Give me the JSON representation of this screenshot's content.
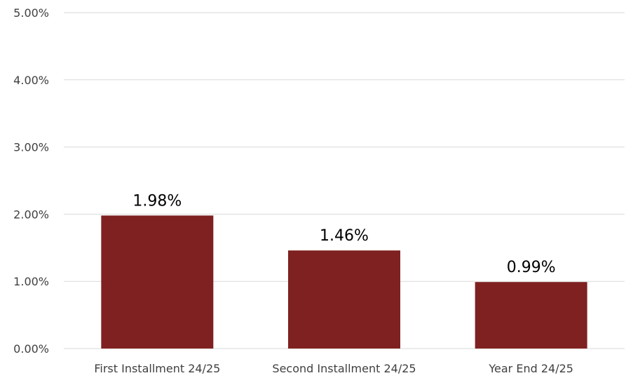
{
  "chart_data": {
    "type": "bar",
    "categories": [
      "First Installment 24/25",
      "Second Installment 24/25",
      "Year End 24/25"
    ],
    "values": [
      1.98,
      1.46,
      0.99
    ],
    "data_labels": [
      "1.98%",
      "1.46%",
      "0.99%"
    ],
    "y_ticks": [
      0,
      1,
      2,
      3,
      4,
      5
    ],
    "y_tick_labels": [
      "0.00%",
      "1.00%",
      "2.00%",
      "3.00%",
      "4.00%",
      "5.00%"
    ],
    "ylim": [
      0,
      5
    ],
    "grid": true,
    "bar_color": "#7f2121",
    "grid_color": "#d9d9d9"
  }
}
